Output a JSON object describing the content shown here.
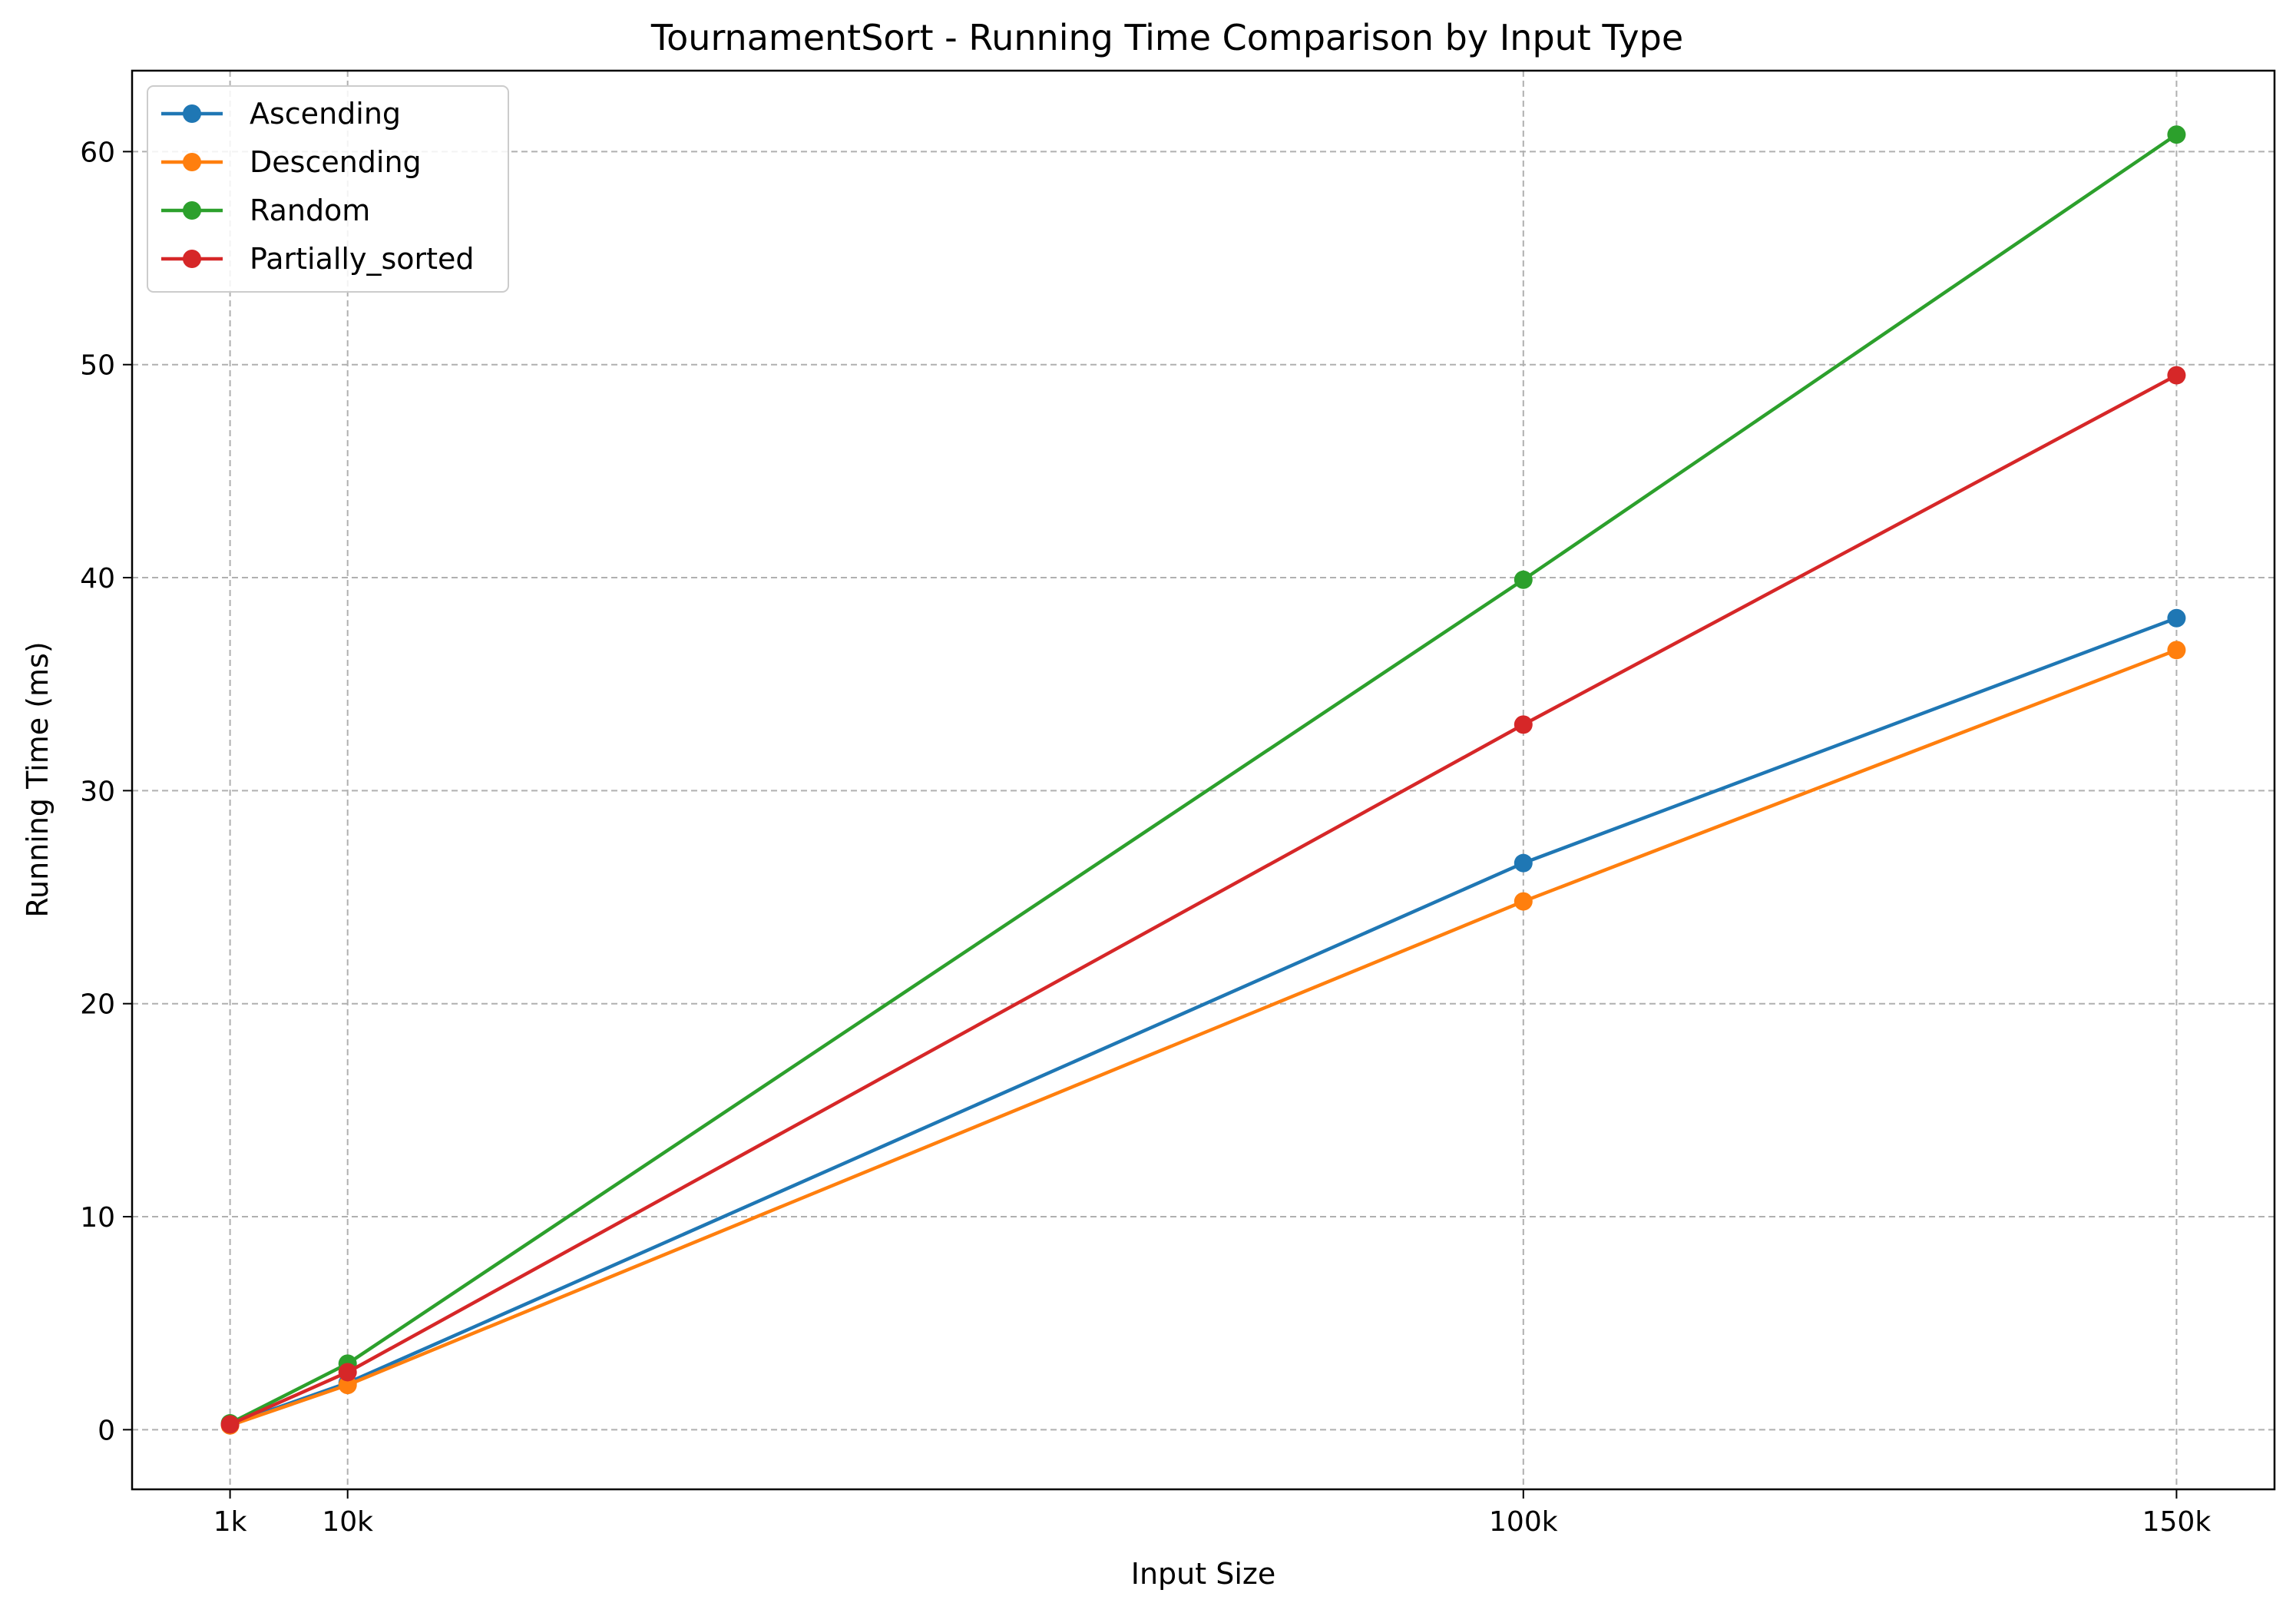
{
  "chart_data": {
    "type": "line",
    "title": "TournamentSort - Running Time Comparison by Input Type",
    "xlabel": "Input Size",
    "ylabel": "Running Time (ms)",
    "x": [
      1000,
      10000,
      100000,
      150000
    ],
    "x_tick_labels": [
      "1k",
      "10k",
      "100k",
      "150k"
    ],
    "xlim": [
      -6500,
      157500
    ],
    "ylim": [
      -2.8,
      63.8
    ],
    "y_ticks": [
      0,
      10,
      20,
      30,
      40,
      50,
      60
    ],
    "grid": true,
    "legend_position": "top-left",
    "series": [
      {
        "name": "Ascending",
        "color": "#1f77b4",
        "values": [
          0.25,
          2.2,
          26.6,
          38.1
        ]
      },
      {
        "name": "Descending",
        "color": "#ff7f0e",
        "values": [
          0.2,
          2.1,
          24.8,
          36.6
        ]
      },
      {
        "name": "Random",
        "color": "#2ca02c",
        "values": [
          0.3,
          3.1,
          39.9,
          60.8
        ]
      },
      {
        "name": "Partially_sorted",
        "color": "#d62728",
        "values": [
          0.25,
          2.7,
          33.1,
          49.5
        ]
      }
    ]
  }
}
